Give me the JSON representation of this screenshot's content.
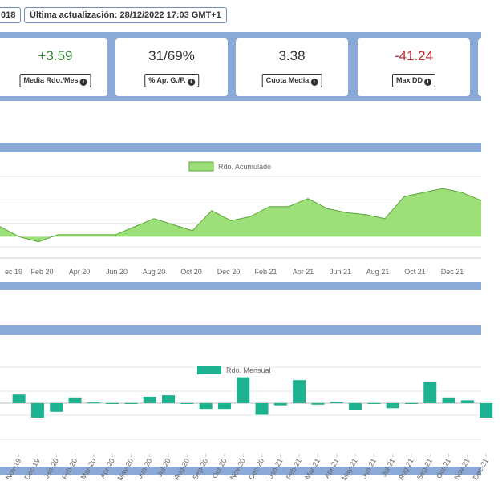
{
  "header": {
    "left_fragment": "018",
    "update_label": "Última actualización: 28/12/2022 17:03 GMT+1"
  },
  "kpis": [
    {
      "value": "",
      "label": ""
    },
    {
      "value": "+3.59",
      "label": "Media Rdo./Mes",
      "color": "#3d8a3d"
    },
    {
      "value": "31/69%",
      "label": "% Ap. G./P.",
      "color": "#333333"
    },
    {
      "value": "3.38",
      "label": "Cuota Media",
      "color": "#333333"
    },
    {
      "value": "-41.24",
      "label": "Max DD",
      "color": "#c0282d"
    }
  ],
  "colors": {
    "band": "#8aa9d6",
    "area_fill": "#9de07a",
    "area_stroke": "#5aa83a",
    "bar_fill": "#1db391"
  },
  "chart_data": [
    {
      "type": "area",
      "series": [
        {
          "name": "Rdo. Acumulado"
        }
      ],
      "x_ticks": [
        "ec 19",
        "Feb 20",
        "Apr 20",
        "Jun 20",
        "Aug 20",
        "Oct 20",
        "Dec 20",
        "Feb 21",
        "Apr 21",
        "Jun 21",
        "Aug 21",
        "Oct 21",
        "Dec 21"
      ],
      "x": [
        "2019-12",
        "2020-01",
        "2020-02",
        "2020-03",
        "2020-04",
        "2020-05",
        "2020-06",
        "2020-07",
        "2020-08",
        "2020-09",
        "2020-10",
        "2020-11",
        "2020-12",
        "2021-01",
        "2021-02",
        "2021-03",
        "2021-04",
        "2021-05",
        "2021-06",
        "2021-07",
        "2021-08",
        "2021-09",
        "2021-10",
        "2021-11",
        "2021-12",
        "2022-01"
      ],
      "values": [
        10,
        0,
        -5,
        2,
        2,
        2,
        2,
        10,
        18,
        12,
        6,
        26,
        16,
        20,
        30,
        30,
        38,
        28,
        24,
        22,
        18,
        40,
        44,
        48,
        44,
        36
      ],
      "ylim": [
        -10,
        60
      ],
      "grid": true,
      "legend_position": "top"
    },
    {
      "type": "bar",
      "series": [
        {
          "name": "Rdo. Mensual"
        }
      ],
      "categories": [
        "Nov-19",
        "Dec-19",
        "Jan-20",
        "Feb-20",
        "Mar-20",
        "Apr-20",
        "May-20",
        "Jun-20",
        "Jul-20",
        "Aug-20",
        "Sep-20",
        "Oct-20",
        "Nov-20",
        "Dec-20",
        "Jan-21",
        "Feb-21",
        "Mar-21",
        "Apr-21",
        "May-21",
        "Jun-21",
        "Jul-21",
        "Aug-21",
        "Sep-21",
        "Oct-21",
        "Nov-21",
        "Dec-21"
      ],
      "values": [
        6,
        -10,
        -6,
        4,
        0.5,
        0,
        0,
        4.5,
        5.5,
        0,
        -4,
        -4,
        18,
        -8,
        -1.5,
        16,
        -1,
        1,
        -5,
        0,
        -3.5,
        0,
        15,
        4,
        2,
        -10
      ],
      "ylim": [
        -25,
        25
      ],
      "grid": true,
      "legend_position": "top"
    }
  ]
}
